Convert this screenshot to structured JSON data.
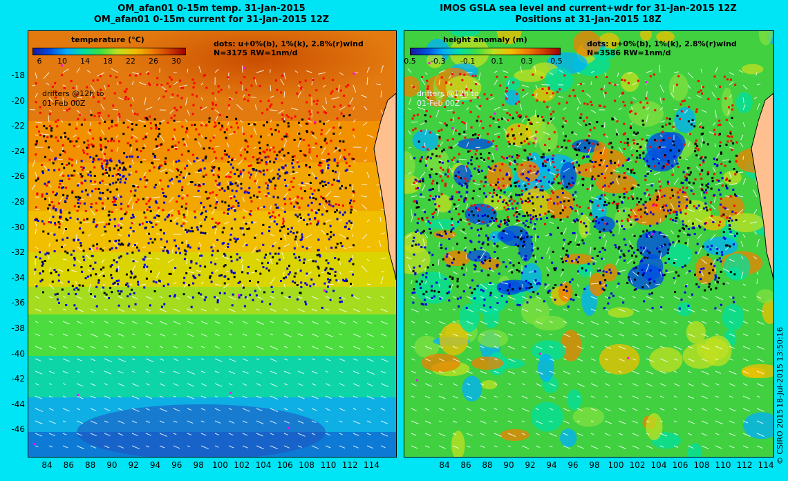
{
  "left": {
    "title_line1": "OM_afan01 0-15m temp. 31-Jan-2015",
    "title_line2": "OM_afan01 0-15m current for 31-Jan-2015 12Z",
    "colorbar_label": "temperature (°C)",
    "colorbar_ticks": [
      "6",
      "10",
      "14",
      "18",
      "22",
      "26",
      "30"
    ],
    "dots_legend": "dots: u+0%(b), 1%(k), 2.8%(r)wind",
    "count_text": "N=3175 RW=1nm/d",
    "drifters_line1": "drifters @12h to",
    "drifters_line2": "01-Feb 00Z",
    "colors": [
      "#1a1aa0",
      "#0050e0",
      "#00b0ff",
      "#00e0a0",
      "#40e040",
      "#c0e020",
      "#f0c000",
      "#f08000",
      "#d04000",
      "#a00000"
    ]
  },
  "right": {
    "title_line1": "IMOS GSLA sea level and current+wdr for 31-Jan-2015 12Z",
    "title_line2": "Positions at 31-Jan-2015 18Z",
    "colorbar_label": "height anomaly (m)",
    "colorbar_ticks": [
      "-0.5",
      "-0.3",
      "-0.1",
      "0.1",
      "0.3",
      "0.5"
    ],
    "dots_legend": "dots: u+0%(b), 1%(k), 2.8%(r)wind",
    "count_text": "N=3586 RW=1nm/d",
    "drifters_line1": "drifters @12h to",
    "drifters_line2": "01-Feb 00Z",
    "colors": [
      "#1a1aa0",
      "#0050e0",
      "#00b0ff",
      "#00e0a0",
      "#40e040",
      "#c0e020",
      "#f0c000",
      "#f08000",
      "#d04000",
      "#a00000"
    ]
  },
  "lon_ticks": [
    "84",
    "86",
    "88",
    "90",
    "92",
    "94",
    "96",
    "98",
    "100",
    "102",
    "104",
    "106",
    "108",
    "110",
    "112",
    "114"
  ],
  "lat_ticks": [
    "-18",
    "-20",
    "-22",
    "-24",
    "-26",
    "-28",
    "-30",
    "-32",
    "-34",
    "-36",
    "-38",
    "-40",
    "-42",
    "-44",
    "-46"
  ],
  "copyright": "© CSIRO 2015",
  "timestamp": "18-Jul-2015 13:50:16"
}
